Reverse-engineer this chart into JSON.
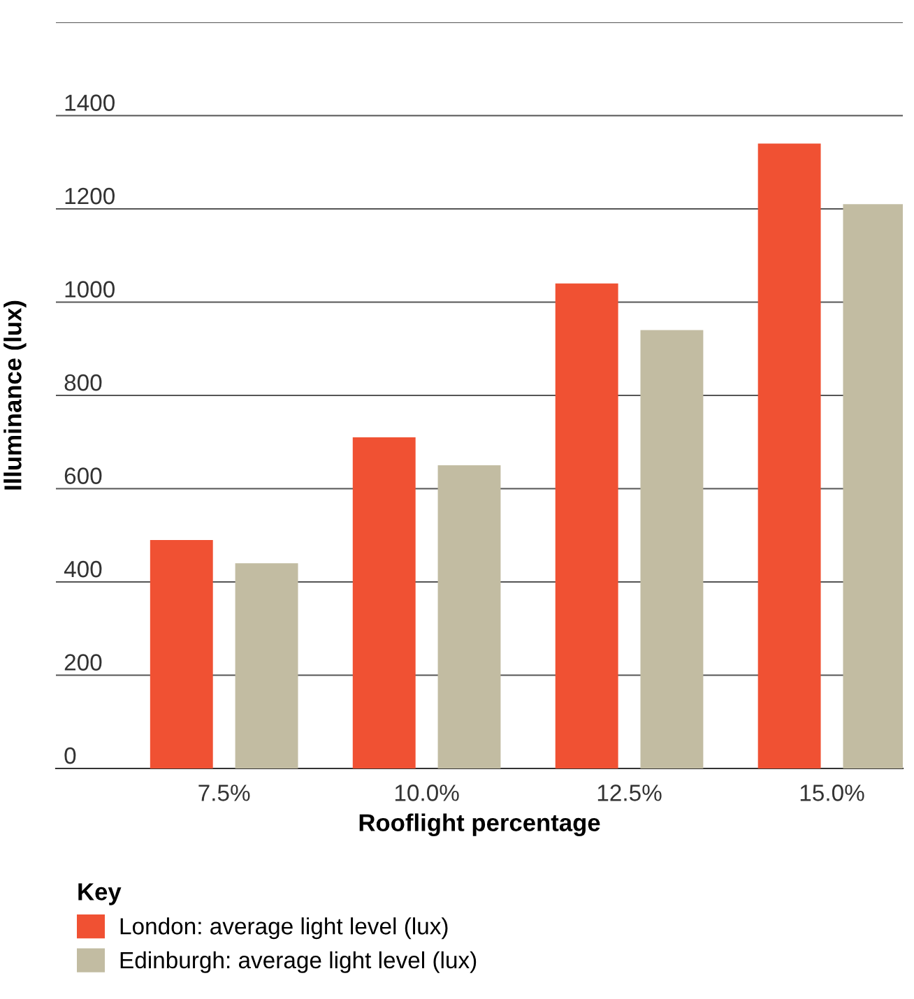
{
  "chart_data": {
    "type": "bar",
    "xlabel": "Rooflight percentage",
    "ylabel": "Illuminance (lux)",
    "legend_title": "Key",
    "categories": [
      "7.5%",
      "10.0%",
      "12.5%",
      "15.0%"
    ],
    "series": [
      {
        "name": "London: average light level (lux)",
        "color": "#f05133",
        "values": [
          490,
          710,
          1040,
          1340
        ]
      },
      {
        "name": "Edinburgh: average light level (lux)",
        "color": "#c2bca2",
        "values": [
          440,
          650,
          940,
          1210
        ]
      }
    ],
    "ylim": [
      0,
      1600
    ],
    "yticks": [
      0,
      200,
      400,
      600,
      800,
      1000,
      1200,
      1400,
      {
        "value": 1600,
        "label": null
      }
    ],
    "grid": "y",
    "legend": "bottom"
  }
}
